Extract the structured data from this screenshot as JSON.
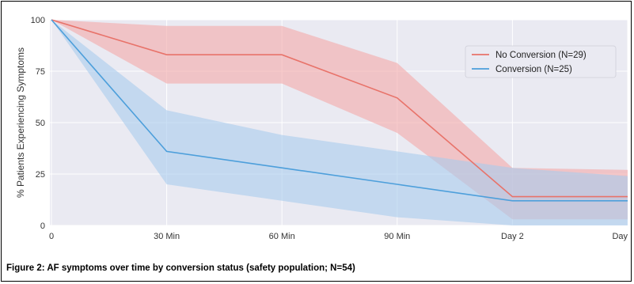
{
  "caption": "Figure 2: AF symptoms over time by conversion status (safety population; N=54)",
  "chart_data": {
    "type": "line",
    "ylabel": "% Patients Experiencing Symptoms",
    "xlabel": "",
    "categories": [
      "0",
      "30 Min",
      "60 Min",
      "90 Min",
      "Day 2",
      "Day"
    ],
    "ylim": [
      0,
      100
    ],
    "yticks": [
      0,
      25,
      50,
      75,
      100
    ],
    "grid": true,
    "legend_position": "top-right",
    "series": [
      {
        "name": "No Conversion (N=29)",
        "color": "#e8736a",
        "band_color": "#f3a9a8",
        "values": [
          100,
          83,
          83,
          62,
          14,
          14
        ],
        "lower": [
          100,
          69,
          69,
          45,
          3,
          3
        ],
        "upper": [
          100,
          97,
          97,
          79,
          28,
          27
        ]
      },
      {
        "name": "Conversion (N=25)",
        "color": "#4d9fdb",
        "band_color": "#a9ccec",
        "values": [
          100,
          36,
          28,
          20,
          12,
          12
        ],
        "lower": [
          100,
          20,
          12,
          4,
          0,
          0
        ],
        "upper": [
          100,
          56,
          44,
          36,
          28,
          24
        ]
      }
    ]
  }
}
